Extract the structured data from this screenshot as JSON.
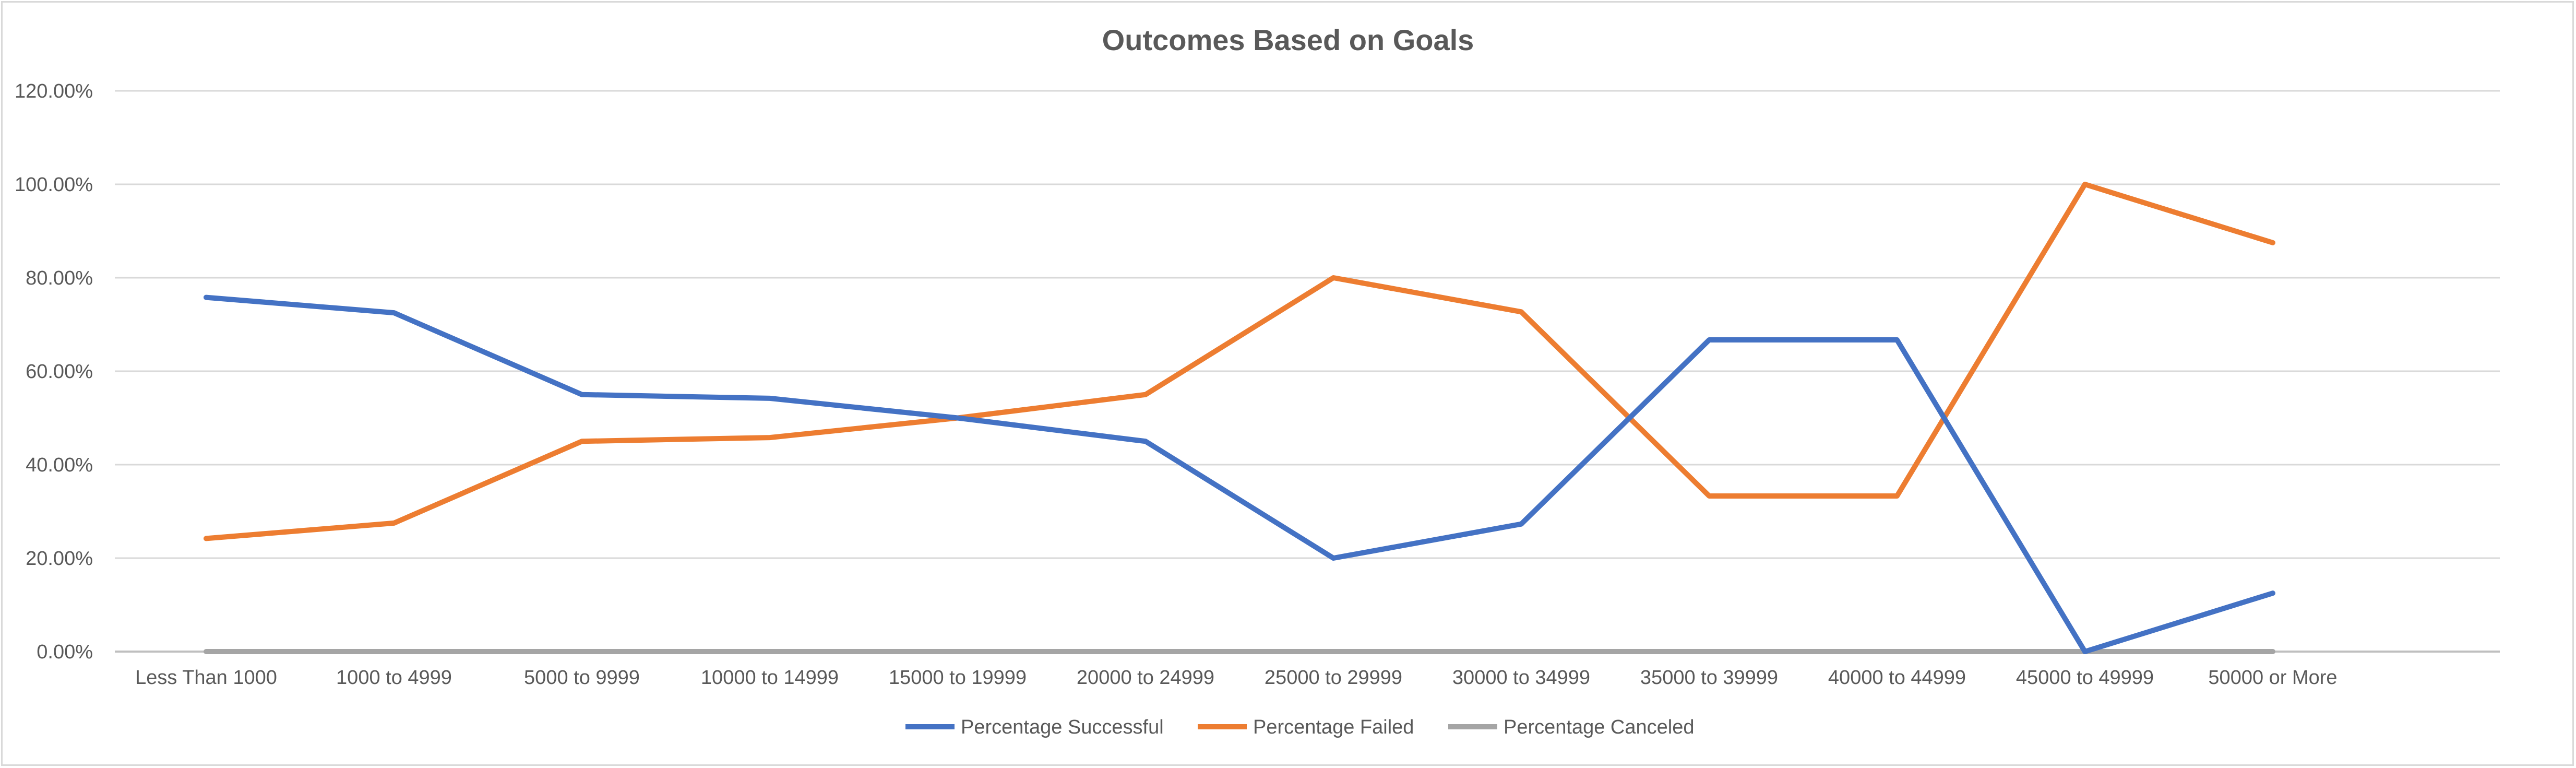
{
  "chart_data": {
    "type": "line",
    "title": "Outcomes Based on Goals",
    "xlabel": "",
    "ylabel": "",
    "categories": [
      "Less Than 1000",
      "1000 to 4999",
      "5000 to 9999",
      "10000 to 14999",
      "15000 to 19999",
      "20000 to 24999",
      "25000 to 29999",
      "30000 to 34999",
      "35000 to 39999",
      "40000 to 44999",
      "45000 to 49999",
      "50000 or More"
    ],
    "ylim": [
      0,
      1.2
    ],
    "yticks": [
      0,
      0.2,
      0.4,
      0.6,
      0.8,
      1.0,
      1.2
    ],
    "ytick_labels": [
      "0.00%",
      "20.00%",
      "40.00%",
      "60.00%",
      "80.00%",
      "100.00%",
      "120.00%"
    ],
    "grid": true,
    "legend_position": "bottom",
    "series": [
      {
        "name": "Percentage Successful",
        "color": "#4472c4",
        "values": [
          0.758,
          0.725,
          0.55,
          0.542,
          0.5,
          0.45,
          0.2,
          0.273,
          0.667,
          0.667,
          0.0,
          0.125
        ]
      },
      {
        "name": "Percentage Failed",
        "color": "#ed7d31",
        "values": [
          0.242,
          0.275,
          0.45,
          0.458,
          0.5,
          0.55,
          0.8,
          0.727,
          0.333,
          0.333,
          1.0,
          0.875
        ]
      },
      {
        "name": "Percentage Canceled",
        "color": "#a5a5a5",
        "values": [
          0,
          0,
          0,
          0,
          0,
          0,
          0,
          0,
          0,
          0,
          0,
          0
        ]
      }
    ]
  }
}
